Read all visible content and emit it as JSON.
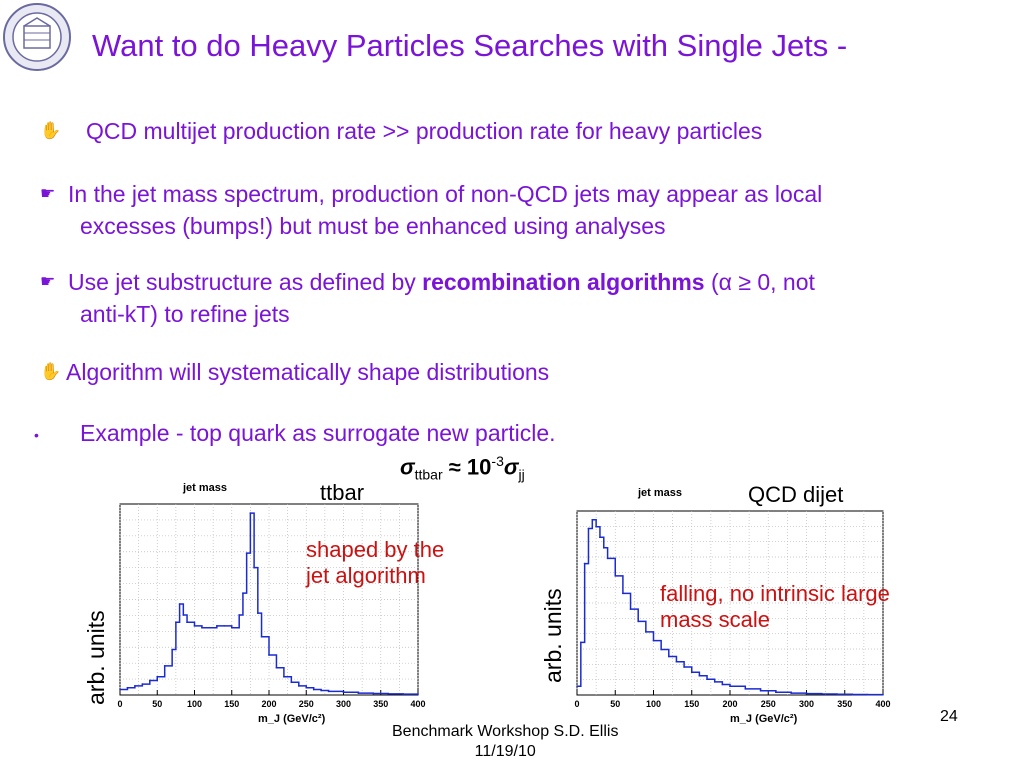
{
  "slide": {
    "title": "Want to do Heavy Particles Searches with Single Jets -",
    "bullets": [
      {
        "marker": "✋",
        "text": "QCD multijet production rate >> production rate for heavy particles"
      },
      {
        "marker": "☛",
        "text_line1": "In the jet mass spectrum, production of non-QCD jets may appear as local",
        "text_line2": "excesses (bumps!) but must be enhanced using analyses"
      },
      {
        "marker": "☛",
        "text_pre": "Use jet substructure as defined by ",
        "text_bold": "recombination algorithms",
        "text_post": " (α ≥ 0, not",
        "text_line2": "anti-kT) to refine jets"
      },
      {
        "marker": "✋",
        "text": "Algorithm will systematically shape distributions"
      },
      {
        "marker": "•",
        "text": "Example - top quark as surrogate new particle."
      }
    ],
    "sigma": {
      "sym1": "σ",
      "sub1": "ttbar",
      "approx": " ≈ 10",
      "exp": "-3",
      "sym2": "σ",
      "sub2": "jj"
    },
    "footer": {
      "line1": "Benchmark Workshop     S.D. Ellis",
      "line2": "11/19/10"
    },
    "page_number": "24"
  },
  "chart_data": [
    {
      "type": "line",
      "title": "jet mass",
      "plot_label": "ttbar",
      "ylabel": "arb. units",
      "xlabel": "m_J (GeV/c²)",
      "xlim": [
        0,
        400
      ],
      "x_ticks": [
        0,
        50,
        100,
        150,
        200,
        250,
        300,
        350,
        400
      ],
      "annotation": "shaped by the jet algorithm",
      "x": [
        0,
        10,
        20,
        30,
        40,
        50,
        60,
        70,
        75,
        80,
        85,
        90,
        100,
        110,
        120,
        130,
        140,
        150,
        160,
        165,
        170,
        175,
        180,
        185,
        190,
        200,
        210,
        220,
        230,
        240,
        250,
        260,
        270,
        280,
        300,
        320,
        340,
        360,
        380,
        400
      ],
      "values": [
        0.03,
        0.04,
        0.05,
        0.06,
        0.08,
        0.1,
        0.16,
        0.25,
        0.4,
        0.5,
        0.44,
        0.4,
        0.38,
        0.37,
        0.37,
        0.38,
        0.38,
        0.37,
        0.44,
        0.56,
        0.78,
        1.0,
        0.7,
        0.45,
        0.32,
        0.22,
        0.15,
        0.1,
        0.07,
        0.05,
        0.04,
        0.03,
        0.025,
        0.02,
        0.015,
        0.01,
        0.008,
        0.006,
        0.005,
        0.004
      ]
    },
    {
      "type": "line",
      "title": "jet mass",
      "plot_label": "QCD dijet",
      "ylabel": "arb. units",
      "xlabel": "m_J (GeV/c²)",
      "xlim": [
        0,
        400
      ],
      "x_ticks": [
        0,
        50,
        100,
        150,
        200,
        250,
        300,
        350,
        400
      ],
      "annotation": "falling, no intrinsic large mass scale",
      "x": [
        0,
        5,
        10,
        15,
        20,
        25,
        30,
        35,
        40,
        50,
        60,
        70,
        80,
        90,
        100,
        110,
        120,
        130,
        140,
        150,
        160,
        170,
        180,
        190,
        200,
        220,
        240,
        260,
        280,
        300,
        320,
        340,
        360,
        380,
        400
      ],
      "values": [
        0.05,
        0.3,
        0.75,
        0.95,
        1.0,
        0.96,
        0.9,
        0.84,
        0.78,
        0.68,
        0.58,
        0.49,
        0.42,
        0.36,
        0.31,
        0.26,
        0.22,
        0.19,
        0.16,
        0.13,
        0.11,
        0.09,
        0.075,
        0.06,
        0.05,
        0.035,
        0.024,
        0.016,
        0.011,
        0.008,
        0.006,
        0.004,
        0.003,
        0.002,
        0.002
      ]
    }
  ]
}
